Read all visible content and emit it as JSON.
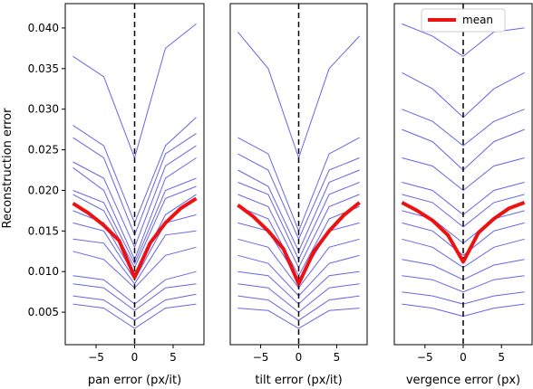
{
  "chart_data": [
    {
      "type": "line",
      "xlabel": "pan error (px/it)",
      "ylabel": "Reconstruction error",
      "xlim": [
        -9,
        9
      ],
      "ylim": [
        0.001,
        0.043
      ],
      "xticks": [
        -5,
        0,
        5
      ],
      "xtick_labels": [
        "−5",
        "0",
        "5"
      ],
      "yticks": [
        0.005,
        0.01,
        0.015,
        0.02,
        0.025,
        0.03,
        0.035,
        0.04
      ],
      "ytick_labels": [
        "0.005",
        "0.010",
        "0.015",
        "0.020",
        "0.025",
        "0.030",
        "0.035",
        "0.040"
      ],
      "vline_x": 0,
      "mean": {
        "x": [
          -8,
          -6,
          -4,
          -2,
          0,
          2,
          4,
          6,
          8
        ],
        "y": [
          0.0184,
          0.0172,
          0.0157,
          0.0138,
          0.0093,
          0.0135,
          0.016,
          0.0178,
          0.019
        ]
      },
      "curves": [
        {
          "x": [
            -8,
            -4,
            0,
            4,
            8
          ],
          "y": [
            0.0365,
            0.034,
            0.024,
            0.0375,
            0.0405
          ]
        },
        {
          "x": [
            -8,
            -4,
            0,
            4,
            8
          ],
          "y": [
            0.028,
            0.0255,
            0.016,
            0.0255,
            0.029
          ]
        },
        {
          "x": [
            -8,
            -4,
            0,
            4,
            8
          ],
          "y": [
            0.0265,
            0.024,
            0.0145,
            0.0245,
            0.027
          ]
        },
        {
          "x": [
            -8,
            -4,
            0,
            4,
            8
          ],
          "y": [
            0.0235,
            0.0215,
            0.013,
            0.023,
            0.0255
          ]
        },
        {
          "x": [
            -8,
            -4,
            0,
            4,
            8
          ],
          "y": [
            0.0228,
            0.02,
            0.0115,
            0.0215,
            0.024
          ]
        },
        {
          "x": [
            -8,
            -4,
            0,
            4,
            8
          ],
          "y": [
            0.02,
            0.0185,
            0.011,
            0.02,
            0.0215
          ]
        },
        {
          "x": [
            -8,
            -4,
            0,
            4,
            8
          ],
          "y": [
            0.0195,
            0.0175,
            0.0105,
            0.019,
            0.0205
          ]
        },
        {
          "x": [
            -8,
            -4,
            0,
            4,
            8
          ],
          "y": [
            0.0175,
            0.016,
            0.0095,
            0.017,
            0.0195
          ]
        },
        {
          "x": [
            -8,
            -4,
            0,
            4,
            8
          ],
          "y": [
            0.016,
            0.015,
            0.009,
            0.016,
            0.017
          ]
        },
        {
          "x": [
            -8,
            -4,
            0,
            4,
            8
          ],
          "y": [
            0.014,
            0.0135,
            0.0085,
            0.0145,
            0.015
          ]
        },
        {
          "x": [
            -8,
            -4,
            0,
            4,
            8
          ],
          "y": [
            0.0125,
            0.0115,
            0.008,
            0.012,
            0.013
          ]
        },
        {
          "x": [
            -8,
            -4,
            0,
            4,
            8
          ],
          "y": [
            0.0095,
            0.009,
            0.006,
            0.009,
            0.01
          ]
        },
        {
          "x": [
            -8,
            -4,
            0,
            4,
            8
          ],
          "y": [
            0.0085,
            0.008,
            0.0052,
            0.008,
            0.0085
          ]
        },
        {
          "x": [
            -8,
            -4,
            0,
            4,
            8
          ],
          "y": [
            0.007,
            0.0065,
            0.004,
            0.0065,
            0.0072
          ]
        },
        {
          "x": [
            -8,
            -4,
            0,
            4,
            8
          ],
          "y": [
            0.006,
            0.0055,
            0.003,
            0.0055,
            0.006
          ]
        }
      ]
    },
    {
      "type": "line",
      "xlabel": "tilt error (px/it)",
      "ylabel": "",
      "xlim": [
        -9,
        9
      ],
      "ylim": [
        0.001,
        0.043
      ],
      "xticks": [
        -5,
        0,
        5
      ],
      "xtick_labels": [
        "−5",
        "0",
        "5"
      ],
      "vline_x": 0,
      "mean": {
        "x": [
          -8,
          -6,
          -4,
          -2,
          0,
          2,
          4,
          6,
          8
        ],
        "y": [
          0.0182,
          0.0168,
          0.015,
          0.0128,
          0.0085,
          0.0125,
          0.015,
          0.017,
          0.0185
        ]
      },
      "curves": [
        {
          "x": [
            -8,
            -4,
            0,
            4,
            8
          ],
          "y": [
            0.0395,
            0.035,
            0.024,
            0.035,
            0.039
          ]
        },
        {
          "x": [
            -8,
            -4,
            0,
            4,
            8
          ],
          "y": [
            0.0265,
            0.0245,
            0.015,
            0.0245,
            0.0265
          ]
        },
        {
          "x": [
            -8,
            -4,
            0,
            4,
            8
          ],
          "y": [
            0.0245,
            0.0225,
            0.014,
            0.0225,
            0.024
          ]
        },
        {
          "x": [
            -8,
            -4,
            0,
            4,
            8
          ],
          "y": [
            0.0225,
            0.0205,
            0.0125,
            0.021,
            0.0225
          ]
        },
        {
          "x": [
            -8,
            -4,
            0,
            4,
            8
          ],
          "y": [
            0.021,
            0.0195,
            0.0115,
            0.0195,
            0.021
          ]
        },
        {
          "x": [
            -8,
            -4,
            0,
            4,
            8
          ],
          "y": [
            0.0195,
            0.018,
            0.0105,
            0.018,
            0.0195
          ]
        },
        {
          "x": [
            -8,
            -4,
            0,
            4,
            8
          ],
          "y": [
            0.018,
            0.0165,
            0.0095,
            0.0165,
            0.018
          ]
        },
        {
          "x": [
            -8,
            -4,
            0,
            4,
            8
          ],
          "y": [
            0.016,
            0.015,
            0.009,
            0.015,
            0.016
          ]
        },
        {
          "x": [
            -8,
            -4,
            0,
            4,
            8
          ],
          "y": [
            0.014,
            0.013,
            0.008,
            0.013,
            0.014
          ]
        },
        {
          "x": [
            -8,
            -4,
            0,
            4,
            8
          ],
          "y": [
            0.012,
            0.011,
            0.007,
            0.011,
            0.012
          ]
        },
        {
          "x": [
            -8,
            -4,
            0,
            4,
            8
          ],
          "y": [
            0.01,
            0.0095,
            0.006,
            0.0095,
            0.01
          ]
        },
        {
          "x": [
            -8,
            -4,
            0,
            4,
            8
          ],
          "y": [
            0.0085,
            0.008,
            0.005,
            0.008,
            0.0085
          ]
        },
        {
          "x": [
            -8,
            -4,
            0,
            4,
            8
          ],
          "y": [
            0.007,
            0.0065,
            0.004,
            0.0065,
            0.007
          ]
        },
        {
          "x": [
            -8,
            -4,
            0,
            4,
            8
          ],
          "y": [
            0.0055,
            0.0052,
            0.003,
            0.0052,
            0.0055
          ]
        }
      ]
    },
    {
      "type": "line",
      "xlabel": "vergence error (px)",
      "ylabel": "",
      "xlim": [
        -9,
        9
      ],
      "ylim": [
        0.001,
        0.043
      ],
      "xticks": [
        -5,
        0,
        5
      ],
      "xtick_labels": [
        "−5",
        "0",
        "5"
      ],
      "vline_x": 0,
      "legend": {
        "label": "mean",
        "position": "top-right"
      },
      "mean": {
        "x": [
          -8,
          -6,
          -4,
          -2,
          0,
          2,
          4,
          6,
          8
        ],
        "y": [
          0.0185,
          0.0175,
          0.0163,
          0.0145,
          0.0112,
          0.0148,
          0.0165,
          0.0178,
          0.0185
        ]
      },
      "curves": [
        {
          "x": [
            -8,
            -4,
            0,
            4,
            8
          ],
          "y": [
            0.0405,
            0.039,
            0.0365,
            0.0395,
            0.04
          ]
        },
        {
          "x": [
            -8,
            -4,
            0,
            4,
            8
          ],
          "y": [
            0.0345,
            0.0325,
            0.029,
            0.0325,
            0.0345
          ]
        },
        {
          "x": [
            -8,
            -4,
            0,
            4,
            8
          ],
          "y": [
            0.03,
            0.0285,
            0.0255,
            0.0285,
            0.03
          ]
        },
        {
          "x": [
            -8,
            -4,
            0,
            4,
            8
          ],
          "y": [
            0.0275,
            0.026,
            0.0225,
            0.026,
            0.0275
          ]
        },
        {
          "x": [
            -8,
            -4,
            0,
            4,
            8
          ],
          "y": [
            0.024,
            0.023,
            0.02,
            0.023,
            0.024
          ]
        },
        {
          "x": [
            -8,
            -4,
            0,
            4,
            8
          ],
          "y": [
            0.021,
            0.02,
            0.017,
            0.02,
            0.021
          ]
        },
        {
          "x": [
            -8,
            -4,
            0,
            4,
            8
          ],
          "y": [
            0.0195,
            0.0185,
            0.0155,
            0.0185,
            0.0195
          ]
        },
        {
          "x": [
            -8,
            -4,
            0,
            4,
            8
          ],
          "y": [
            0.0175,
            0.0165,
            0.0135,
            0.0165,
            0.0175
          ]
        },
        {
          "x": [
            -8,
            -4,
            0,
            4,
            8
          ],
          "y": [
            0.016,
            0.015,
            0.012,
            0.015,
            0.016
          ]
        },
        {
          "x": [
            -8,
            -4,
            0,
            4,
            8
          ],
          "y": [
            0.014,
            0.013,
            0.0105,
            0.013,
            0.014
          ]
        },
        {
          "x": [
            -8,
            -4,
            0,
            4,
            8
          ],
          "y": [
            0.0115,
            0.0108,
            0.009,
            0.0108,
            0.0115
          ]
        },
        {
          "x": [
            -8,
            -4,
            0,
            4,
            8
          ],
          "y": [
            0.0095,
            0.009,
            0.0075,
            0.009,
            0.0095
          ]
        },
        {
          "x": [
            -8,
            -4,
            0,
            4,
            8
          ],
          "y": [
            0.0075,
            0.007,
            0.006,
            0.007,
            0.0075
          ]
        },
        {
          "x": [
            -8,
            -4,
            0,
            4,
            8
          ],
          "y": [
            0.006,
            0.0055,
            0.0045,
            0.0055,
            0.006
          ]
        }
      ]
    }
  ],
  "colors": {
    "curve": "#3333dd",
    "mean": "#ee1111",
    "vline": "#000000",
    "axis": "#000000"
  }
}
